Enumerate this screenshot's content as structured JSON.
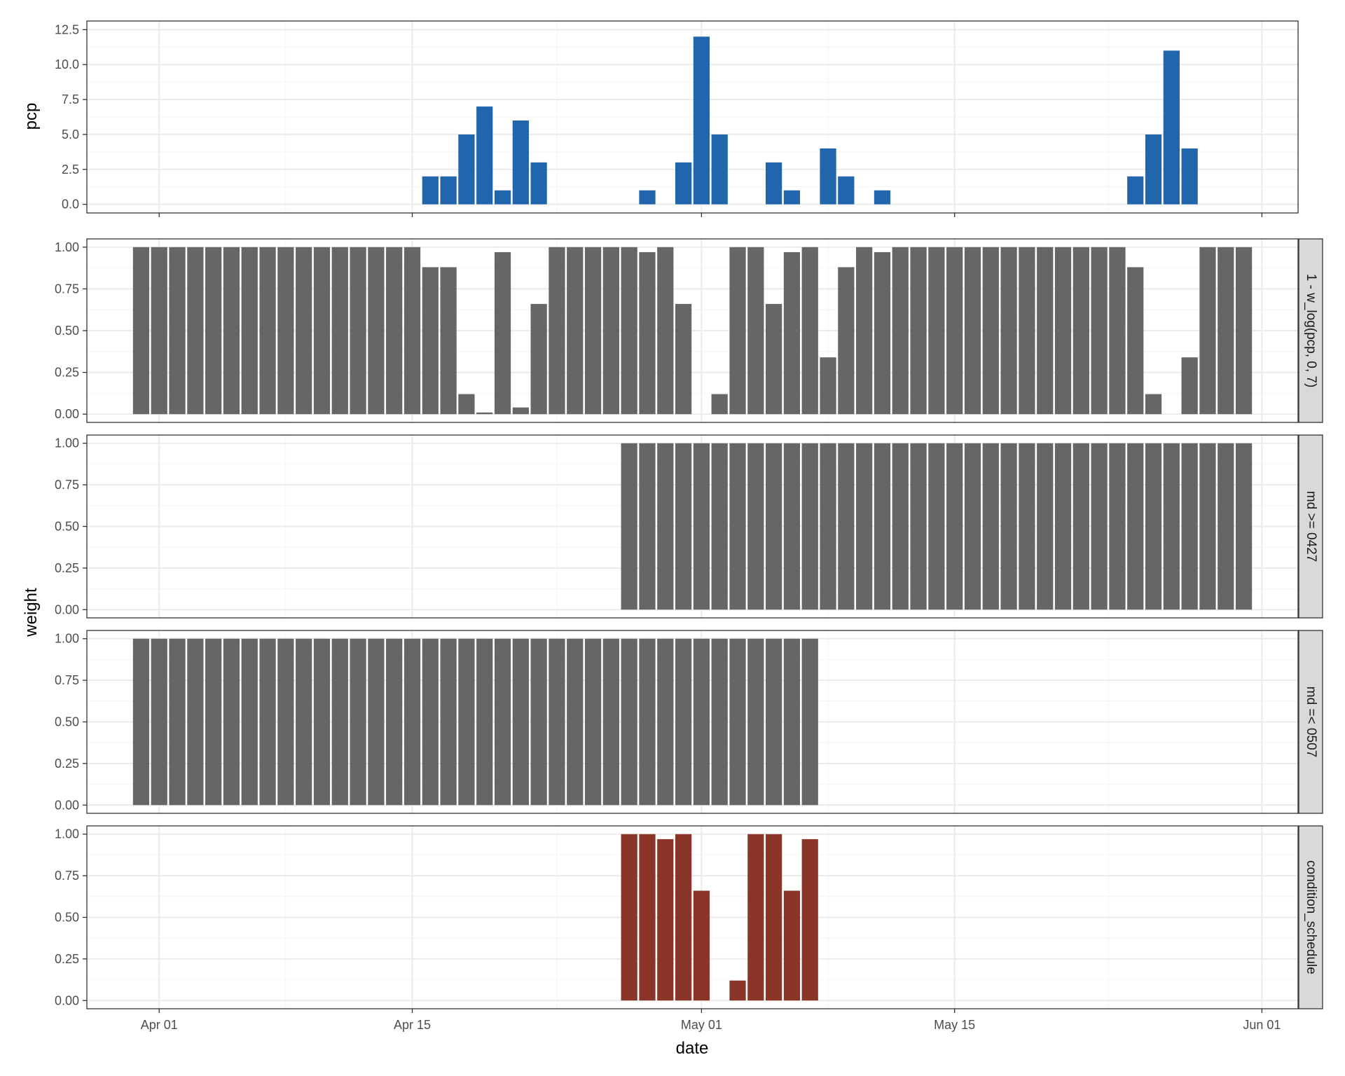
{
  "colors": {
    "precip": "#2166ac",
    "weight": "#666666",
    "condition": "#8b3428",
    "strip": "#d9d9d9",
    "grid_major": "#ebebeb",
    "grid_minor": "#f4f4f4",
    "panel_border": "#333333"
  },
  "chart_data": {
    "type": "bar",
    "xlabel": "date",
    "ylabel_top": "pcp",
    "ylabel_bottom": "weight",
    "x_range": [
      "2024-03-28",
      "2024-06-03"
    ],
    "x_ticks": [
      {
        "date": "2024-04-01",
        "label": "Apr 01"
      },
      {
        "date": "2024-04-15",
        "label": "Apr 15"
      },
      {
        "date": "2024-05-01",
        "label": "May 01"
      },
      {
        "date": "2024-05-15",
        "label": "May 15"
      },
      {
        "date": "2024-06-01",
        "label": "Jun 01"
      }
    ],
    "dates": [
      "2024-03-31",
      "2024-04-01",
      "2024-04-02",
      "2024-04-03",
      "2024-04-04",
      "2024-04-05",
      "2024-04-06",
      "2024-04-07",
      "2024-04-08",
      "2024-04-09",
      "2024-04-10",
      "2024-04-11",
      "2024-04-12",
      "2024-04-13",
      "2024-04-14",
      "2024-04-15",
      "2024-04-16",
      "2024-04-17",
      "2024-04-18",
      "2024-04-19",
      "2024-04-20",
      "2024-04-21",
      "2024-04-22",
      "2024-04-23",
      "2024-04-24",
      "2024-04-25",
      "2024-04-26",
      "2024-04-27",
      "2024-04-28",
      "2024-04-29",
      "2024-04-30",
      "2024-05-01",
      "2024-05-02",
      "2024-05-03",
      "2024-05-04",
      "2024-05-05",
      "2024-05-06",
      "2024-05-07",
      "2024-05-08",
      "2024-05-09",
      "2024-05-10",
      "2024-05-11",
      "2024-05-12",
      "2024-05-13",
      "2024-05-14",
      "2024-05-15",
      "2024-05-16",
      "2024-05-17",
      "2024-05-18",
      "2024-05-19",
      "2024-05-20",
      "2024-05-21",
      "2024-05-22",
      "2024-05-23",
      "2024-05-24",
      "2024-05-25",
      "2024-05-26",
      "2024-05-27",
      "2024-05-28",
      "2024-05-29",
      "2024-05-30",
      "2024-05-31"
    ],
    "panels": [
      {
        "id": "pcp",
        "strip": "",
        "ylim": [
          0,
          12.5
        ],
        "y_ticks": [
          0,
          2.5,
          5,
          7.5,
          10,
          12.5
        ],
        "y_tick_labels": [
          "0.0",
          "2.5",
          "5.0",
          "7.5",
          "10.0",
          "12.5"
        ],
        "color": "#2166ac",
        "values": [
          0,
          0,
          0,
          0,
          0,
          0,
          0,
          0,
          0,
          0,
          0,
          0,
          0,
          0,
          0,
          0,
          2,
          2,
          5,
          7,
          1,
          6,
          3,
          0,
          0,
          0,
          0,
          0,
          1,
          0,
          3,
          12,
          5,
          0,
          0,
          3,
          1,
          0,
          4,
          2,
          0,
          1,
          0,
          0,
          0,
          0,
          0,
          0,
          0,
          0,
          0,
          0,
          0,
          0,
          0,
          2,
          5,
          11,
          4,
          0,
          0,
          0
        ]
      },
      {
        "id": "w_log",
        "strip": "1 - w_log(pcp, 0, 7)",
        "ylim": [
          0,
          1
        ],
        "y_ticks": [
          0,
          0.25,
          0.5,
          0.75,
          1
        ],
        "y_tick_labels": [
          "0.00",
          "0.25",
          "0.50",
          "0.75",
          "1.00"
        ],
        "color": "#666666",
        "values": [
          1,
          1,
          1,
          1,
          1,
          1,
          1,
          1,
          1,
          1,
          1,
          1,
          1,
          1,
          1,
          1,
          0.88,
          0.88,
          0.12,
          0.01,
          0.97,
          0.04,
          0.66,
          1,
          1,
          1,
          1,
          1,
          0.97,
          1,
          0.66,
          0,
          0.12,
          1,
          1,
          0.66,
          0.97,
          1,
          0.34,
          0.88,
          1,
          0.97,
          1,
          1,
          1,
          1,
          1,
          1,
          1,
          1,
          1,
          1,
          1,
          1,
          1,
          0.88,
          0.12,
          0,
          0.34,
          1,
          1,
          1
        ]
      },
      {
        "id": "md_ge",
        "strip": "md >= 0427",
        "ylim": [
          0,
          1
        ],
        "y_ticks": [
          0,
          0.25,
          0.5,
          0.75,
          1
        ],
        "y_tick_labels": [
          "0.00",
          "0.25",
          "0.50",
          "0.75",
          "1.00"
        ],
        "color": "#666666",
        "values": [
          0,
          0,
          0,
          0,
          0,
          0,
          0,
          0,
          0,
          0,
          0,
          0,
          0,
          0,
          0,
          0,
          0,
          0,
          0,
          0,
          0,
          0,
          0,
          0,
          0,
          0,
          0,
          1,
          1,
          1,
          1,
          1,
          1,
          1,
          1,
          1,
          1,
          1,
          1,
          1,
          1,
          1,
          1,
          1,
          1,
          1,
          1,
          1,
          1,
          1,
          1,
          1,
          1,
          1,
          1,
          1,
          1,
          1,
          1,
          1,
          1,
          1
        ]
      },
      {
        "id": "md_le",
        "strip": "md =< 0507",
        "ylim": [
          0,
          1
        ],
        "y_ticks": [
          0,
          0.25,
          0.5,
          0.75,
          1
        ],
        "y_tick_labels": [
          "0.00",
          "0.25",
          "0.50",
          "0.75",
          "1.00"
        ],
        "color": "#666666",
        "values": [
          1,
          1,
          1,
          1,
          1,
          1,
          1,
          1,
          1,
          1,
          1,
          1,
          1,
          1,
          1,
          1,
          1,
          1,
          1,
          1,
          1,
          1,
          1,
          1,
          1,
          1,
          1,
          1,
          1,
          1,
          1,
          1,
          1,
          1,
          1,
          1,
          1,
          1,
          0,
          0,
          0,
          0,
          0,
          0,
          0,
          0,
          0,
          0,
          0,
          0,
          0,
          0,
          0,
          0,
          0,
          0,
          0,
          0,
          0,
          0,
          0,
          0
        ]
      },
      {
        "id": "condition",
        "strip": "condition_schedule",
        "ylim": [
          0,
          1
        ],
        "y_ticks": [
          0,
          0.25,
          0.5,
          0.75,
          1
        ],
        "y_tick_labels": [
          "0.00",
          "0.25",
          "0.50",
          "0.75",
          "1.00"
        ],
        "color": "#8b3428",
        "values": [
          0,
          0,
          0,
          0,
          0,
          0,
          0,
          0,
          0,
          0,
          0,
          0,
          0,
          0,
          0,
          0,
          0,
          0,
          0,
          0,
          0,
          0,
          0,
          0,
          0,
          0,
          0,
          1,
          1,
          0.97,
          1,
          0.66,
          0,
          0.12,
          1,
          1,
          0.66,
          0.97,
          0,
          0,
          0,
          0,
          0,
          0,
          0,
          0,
          0,
          0,
          0,
          0,
          0,
          0,
          0,
          0,
          0,
          0,
          0,
          0,
          0,
          0,
          0,
          0
        ]
      }
    ]
  }
}
